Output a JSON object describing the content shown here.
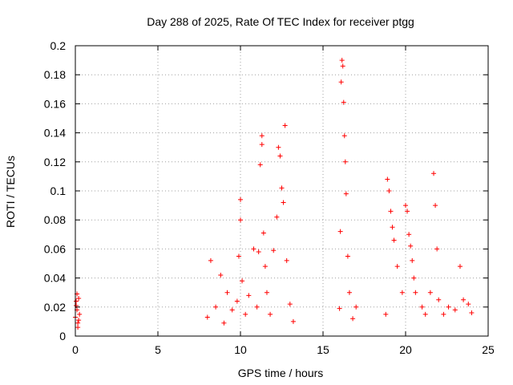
{
  "chart_data": {
    "type": "scatter",
    "title": "Day 288 of 2025, Rate Of TEC Index for receiver ptgg",
    "xlabel": "GPS time / hours",
    "ylabel": "ROTI / TECUs",
    "xlim": [
      0,
      25
    ],
    "ylim": [
      0,
      0.2
    ],
    "x_ticks": [
      "0",
      "5",
      "10",
      "15",
      "20",
      "25"
    ],
    "y_ticks": [
      "0",
      "0.02",
      "0.04",
      "0.06",
      "0.08",
      "0.1",
      "0.12",
      "0.14",
      "0.16",
      "0.18",
      "0.2"
    ],
    "grid": true,
    "marker": "+",
    "marker_color": "#ff0000",
    "series": [
      {
        "x": [
          0.0,
          0.05,
          0.1,
          0.15,
          0.2,
          0.25,
          0.05,
          0.1,
          0.15,
          0.2,
          8.0,
          8.2,
          8.5,
          8.8,
          9.0,
          9.2,
          9.5,
          9.8,
          9.9,
          10.0,
          10.0,
          10.1,
          10.3,
          10.5,
          10.8,
          11.0,
          11.1,
          11.2,
          11.3,
          11.3,
          11.4,
          11.5,
          11.6,
          11.8,
          12.0,
          12.2,
          12.3,
          12.4,
          12.5,
          12.6,
          12.7,
          12.8,
          13.0,
          13.2,
          16.0,
          16.05,
          16.1,
          16.15,
          16.2,
          16.25,
          16.3,
          16.35,
          16.4,
          16.5,
          16.6,
          16.8,
          17.0,
          18.8,
          18.9,
          19.0,
          19.1,
          19.2,
          19.3,
          19.5,
          19.8,
          20.0,
          20.1,
          20.2,
          20.3,
          20.4,
          20.5,
          20.6,
          21.0,
          21.2,
          21.5,
          21.7,
          21.8,
          21.9,
          22.0,
          22.3,
          22.6,
          23.0,
          23.3,
          23.5,
          23.8,
          24.0
        ],
        "y": [
          0.013,
          0.024,
          0.018,
          0.009,
          0.026,
          0.015,
          0.021,
          0.029,
          0.006,
          0.011,
          0.013,
          0.052,
          0.02,
          0.042,
          0.009,
          0.03,
          0.018,
          0.024,
          0.055,
          0.094,
          0.08,
          0.038,
          0.015,
          0.028,
          0.06,
          0.02,
          0.058,
          0.118,
          0.138,
          0.132,
          0.071,
          0.048,
          0.03,
          0.015,
          0.059,
          0.082,
          0.13,
          0.124,
          0.102,
          0.092,
          0.145,
          0.052,
          0.022,
          0.01,
          0.019,
          0.072,
          0.175,
          0.19,
          0.186,
          0.161,
          0.138,
          0.12,
          0.098,
          0.055,
          0.03,
          0.012,
          0.02,
          0.015,
          0.108,
          0.1,
          0.086,
          0.075,
          0.066,
          0.048,
          0.03,
          0.09,
          0.086,
          0.07,
          0.062,
          0.052,
          0.04,
          0.03,
          0.02,
          0.015,
          0.03,
          0.112,
          0.09,
          0.06,
          0.025,
          0.015,
          0.02,
          0.018,
          0.048,
          0.025,
          0.022,
          0.016
        ]
      }
    ]
  }
}
